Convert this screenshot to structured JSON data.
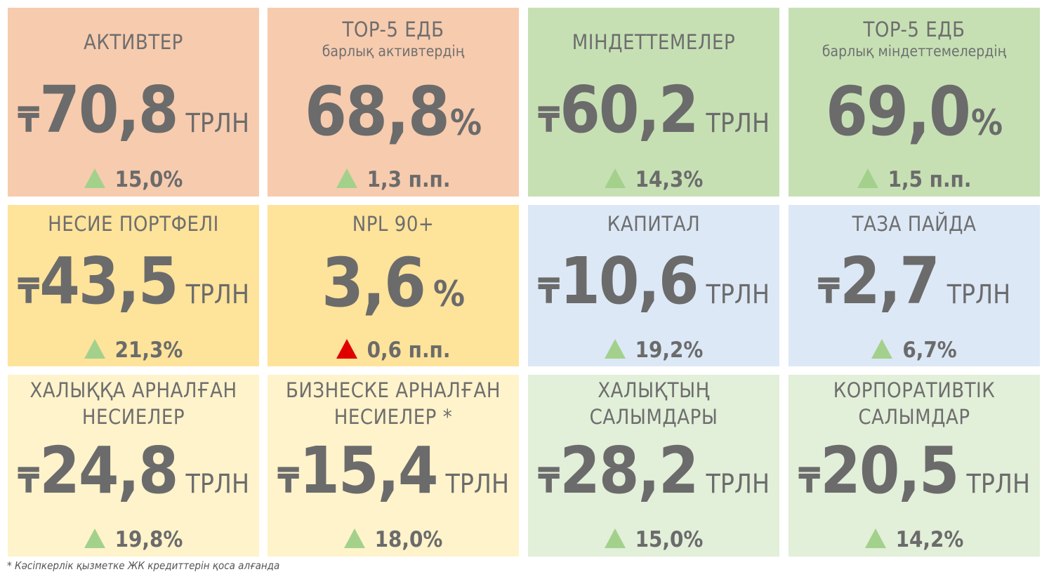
{
  "colors": {
    "salmon": "#f7cbae",
    "light_green": "#c6e0b4",
    "yellow": "#fee39a",
    "light_blue": "#dce8f6",
    "cream": "#fff3cb",
    "pale_green": "#e2efd9",
    "up_triangle": "#a3d18c",
    "down_triangle_red": "#e00000"
  },
  "tiles": [
    {
      "title": "АКТИВТЕР",
      "currency": "₸",
      "value": "70,8",
      "unit": "ТРЛН",
      "change": "15,0%",
      "trend": "up-green-triangle-icon"
    },
    {
      "title": "TOP-5 ЕДБ",
      "subtitle": "барлық активтердің",
      "value": "68,8",
      "percent": "%",
      "change": "1,3 п.п.",
      "trend": "up-green-triangle-icon"
    },
    {
      "title": "МІНДЕТТЕМЕЛЕР",
      "currency": "₸",
      "value": "60,2",
      "unit": "ТРЛН",
      "change": "14,3%",
      "trend": "up-green-triangle-icon"
    },
    {
      "title": "TOP-5 ЕДБ",
      "subtitle": "барлық міндеттемелердің",
      "value": "69,0",
      "percent": "%",
      "change": "1,5 п.п.",
      "trend": "up-green-triangle-icon"
    },
    {
      "title": "НЕСИЕ ПОРТФЕЛІ",
      "currency": "₸",
      "value": "43,5",
      "unit": "ТРЛН",
      "change": "21,3%",
      "trend": "up-green-triangle-icon"
    },
    {
      "title": "NPL 90+",
      "value": "3,6",
      "percent": "%",
      "change": "0,6 п.п.",
      "trend": "up-red-triangle-icon"
    },
    {
      "title": "КАПИТАЛ",
      "currency": "₸",
      "value": "10,6",
      "unit": "ТРЛН",
      "change": "19,2%",
      "trend": "up-green-triangle-icon"
    },
    {
      "title": "ТАЗА ПАЙДА",
      "currency": "₸",
      "value": "2,7",
      "unit": "ТРЛН",
      "change": "6,7%",
      "trend": "up-green-triangle-icon"
    },
    {
      "title_line1": "ХАЛЫҚҚА АРНАЛҒАН",
      "title_line2": "НЕСИЕЛЕР",
      "currency": "₸",
      "value": "24,8",
      "unit": "ТРЛН",
      "change": "19,8%",
      "trend": "up-green-triangle-icon"
    },
    {
      "title_line1": "БИЗНЕСКЕ АРНАЛҒАН",
      "title_line2": "НЕСИЕЛЕР *",
      "currency": "₸",
      "value": "15,4",
      "unit": "ТРЛН",
      "change": "18,0%",
      "trend": "up-green-triangle-icon"
    },
    {
      "title_line1": "ХАЛЫҚТЫҢ",
      "title_line2": "САЛЫМДАРЫ",
      "currency": "₸",
      "value": "28,2",
      "unit": "ТРЛН",
      "change": "15,0%",
      "trend": "up-green-triangle-icon"
    },
    {
      "title_line1": "КОРПОРАТИВТІК",
      "title_line2": "САЛЫМДАР",
      "currency": "₸",
      "value": "20,5",
      "unit": "ТРЛН",
      "change": "14,2%",
      "trend": "up-green-triangle-icon"
    }
  ],
  "footnote": "* Кәсіпкерлік қызметке ЖК кредиттерін қоса алғанда"
}
